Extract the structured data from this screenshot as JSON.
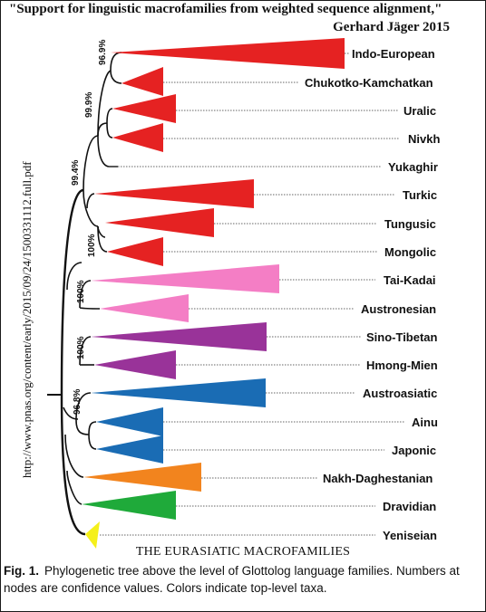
{
  "header": {
    "title": "\"Support for linguistic macrofamilies from weighted sequence alignment,\"",
    "author": "Gerhard Jäger 2015"
  },
  "side_url": "http://www.pnas.org/content/early/2015/09/24/1500331112.full.pdf",
  "subtitle": "THE EURASIATIC MACROFAMILIES",
  "caption": {
    "fig": "Fig. 1.",
    "text": "Phylogenetic tree above the level of Glottolog language families. Numbers at nodes are confidence values. Colors indicate top-level taxa."
  },
  "colors": {
    "red": "#e52222",
    "pink": "#f47ec5",
    "purple": "#993399",
    "blue": "#1a6cb4",
    "orange": "#f2841e",
    "green": "#1faa3a",
    "yellow": "#f5f01a"
  },
  "leaves": [
    {
      "name": "Indo-European",
      "color": "red"
    },
    {
      "name": "Chukotko-Kamchatkan",
      "color": "red"
    },
    {
      "name": "Uralic",
      "color": "red"
    },
    {
      "name": "Nivkh",
      "color": "red"
    },
    {
      "name": "Yukaghir",
      "color": "red"
    },
    {
      "name": "Turkic",
      "color": "red"
    },
    {
      "name": "Tungusic",
      "color": "red"
    },
    {
      "name": "Mongolic",
      "color": "red"
    },
    {
      "name": "Tai-Kadai",
      "color": "pink"
    },
    {
      "name": "Austronesian",
      "color": "pink"
    },
    {
      "name": "Sino-Tibetan",
      "color": "purple"
    },
    {
      "name": "Hmong-Mien",
      "color": "purple"
    },
    {
      "name": "Austroasiatic",
      "color": "blue"
    },
    {
      "name": "Ainu",
      "color": "blue"
    },
    {
      "name": "Japonic",
      "color": "blue"
    },
    {
      "name": "Nakh-Daghestanian",
      "color": "orange"
    },
    {
      "name": "Dravidian",
      "color": "green"
    },
    {
      "name": "Yeniseian",
      "color": "yellow"
    }
  ],
  "confidence": [
    "96.9%",
    "99.9%",
    "99.4%",
    "100%",
    "100%",
    "100%",
    "96.8%"
  ]
}
